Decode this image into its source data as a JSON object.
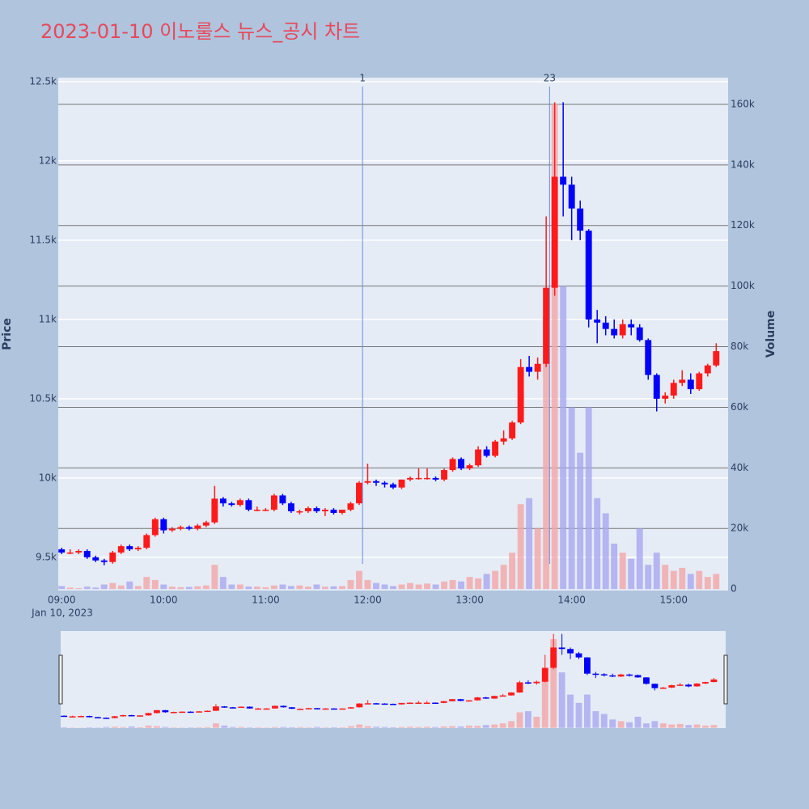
{
  "chart_data": {
    "type": "candlestick",
    "title": "2023-01-10 이노룰스 뉴스_공시 차트",
    "ylabel": "Price",
    "y2label": "Volume",
    "x_sublabel": "Jan 10, 2023",
    "increasing_color": "#ff1a1a",
    "decreasing_color": "#0000ff",
    "volume_increasing_color": "#f4a6a6",
    "volume_decreasing_color": "#a8a8f0",
    "grid": true,
    "rangeslider": true,
    "xlim": [
      "08:58",
      "15:32"
    ],
    "xticks": [
      "09:00",
      "10:00",
      "11:00",
      "12:00",
      "13:00",
      "14:00",
      "15:00"
    ],
    "ylim": [
      9290,
      12525
    ],
    "yticks": [
      {
        "value": 9500,
        "label": "9.5k"
      },
      {
        "value": 10000,
        "label": "10k"
      },
      {
        "value": 10500,
        "label": "10.5k"
      },
      {
        "value": 11000,
        "label": "11k"
      },
      {
        "value": 11500,
        "label": "11.5k"
      },
      {
        "value": 12000,
        "label": "12k"
      },
      {
        "value": 12500,
        "label": "12.5k"
      }
    ],
    "y2lim": [
      -500,
      168800
    ],
    "y2ticks": [
      0,
      {
        "value": 20000,
        "label": "20k"
      },
      {
        "value": 40000,
        "label": "40k"
      },
      {
        "value": 60000,
        "label": "60k"
      },
      {
        "value": 80000,
        "label": "80k"
      },
      {
        "value": 100000,
        "label": "100k"
      },
      {
        "value": 120000,
        "label": "120k"
      },
      {
        "value": 140000,
        "label": "140k"
      },
      {
        "value": 160000,
        "label": "160k"
      }
    ],
    "annotations": [
      {
        "x": "11:57",
        "label": "1"
      },
      {
        "x": "13:47",
        "label": "23"
      }
    ],
    "x": [
      "09:00",
      "09:05",
      "09:10",
      "09:15",
      "09:20",
      "09:25",
      "09:30",
      "09:35",
      "09:40",
      "09:45",
      "09:50",
      "09:55",
      "10:00",
      "10:05",
      "10:10",
      "10:15",
      "10:20",
      "10:25",
      "10:30",
      "10:35",
      "10:40",
      "10:45",
      "10:50",
      "10:55",
      "11:00",
      "11:05",
      "11:10",
      "11:15",
      "11:20",
      "11:25",
      "11:30",
      "11:35",
      "11:40",
      "11:45",
      "11:50",
      "11:55",
      "12:00",
      "12:05",
      "12:10",
      "12:15",
      "12:20",
      "12:25",
      "12:30",
      "12:35",
      "12:40",
      "12:45",
      "12:50",
      "12:55",
      "13:00",
      "13:05",
      "13:10",
      "13:15",
      "13:20",
      "13:25",
      "13:30",
      "13:35",
      "13:40",
      "13:45",
      "13:50",
      "13:55",
      "14:00",
      "14:05",
      "14:10",
      "14:15",
      "14:20",
      "14:25",
      "14:30",
      "14:35",
      "14:40",
      "14:45",
      "14:50",
      "14:55",
      "15:00",
      "15:05",
      "15:10",
      "15:15",
      "15:20",
      "15:25"
    ],
    "open": [
      9550,
      9530,
      9530,
      9540,
      9500,
      9480,
      9470,
      9530,
      9570,
      9550,
      9560,
      9640,
      9740,
      9670,
      9680,
      9690,
      9680,
      9700,
      9720,
      9870,
      9840,
      9830,
      9860,
      9800,
      9800,
      9800,
      9890,
      9840,
      9790,
      9790,
      9810,
      9790,
      9800,
      9780,
      9800,
      9840,
      9970,
      9980,
      9970,
      9960,
      9940,
      9990,
      10000,
      10000,
      10000,
      9990,
      10050,
      10120,
      10060,
      10080,
      10180,
      10140,
      10230,
      10250,
      10350,
      10700,
      10670,
      10720,
      11200,
      11900,
      11850,
      11700,
      11560,
      11000,
      10980,
      10940,
      10900,
      10970,
      10950,
      10870,
      10650,
      10500,
      10520,
      10600,
      10620,
      10560,
      10660,
      10710
    ],
    "high": [
      9560,
      9550,
      9550,
      9550,
      9510,
      9490,
      9540,
      9580,
      9580,
      9570,
      9650,
      9750,
      9750,
      9690,
      9700,
      9700,
      9710,
      9730,
      9950,
      9880,
      9850,
      9870,
      9870,
      9820,
      9810,
      9900,
      9900,
      9850,
      9800,
      9820,
      9820,
      9810,
      9810,
      9800,
      9850,
      9980,
      10090,
      9990,
      9980,
      9970,
      9990,
      10010,
      10060,
      10060,
      10010,
      10060,
      10130,
      10130,
      10090,
      10200,
      10200,
      10240,
      10300,
      10360,
      10750,
      10770,
      10760,
      11650,
      12370,
      12370,
      11900,
      11750,
      11570,
      11060,
      11020,
      11000,
      11000,
      11000,
      10970,
      10880,
      10660,
      10540,
      10620,
      10680,
      10660,
      10670,
      10720,
      10850
    ],
    "low": [
      9520,
      9520,
      9520,
      9490,
      9470,
      9450,
      9460,
      9520,
      9540,
      9540,
      9550,
      9630,
      9650,
      9660,
      9670,
      9670,
      9670,
      9690,
      9710,
      9820,
      9820,
      9820,
      9790,
      9790,
      9790,
      9790,
      9830,
      9780,
      9770,
      9780,
      9780,
      9760,
      9770,
      9770,
      9790,
      9830,
      9960,
      9950,
      9940,
      9930,
      9930,
      9980,
      9990,
      9990,
      9980,
      9980,
      10040,
      10050,
      10050,
      10070,
      10130,
      10130,
      10210,
      10240,
      10340,
      10640,
      10620,
      10700,
      11150,
      11650,
      11500,
      11500,
      10950,
      10850,
      10900,
      10880,
      10880,
      10900,
      10860,
      10620,
      10420,
      10470,
      10500,
      10580,
      10530,
      10550,
      10640,
      10700
    ],
    "close": [
      9530,
      9530,
      9540,
      9500,
      9480,
      9470,
      9530,
      9570,
      9550,
      9560,
      9640,
      9740,
      9670,
      9680,
      9690,
      9680,
      9700,
      9720,
      9870,
      9840,
      9830,
      9860,
      9800,
      9800,
      9800,
      9890,
      9840,
      9790,
      9790,
      9810,
      9790,
      9800,
      9780,
      9800,
      9840,
      9970,
      9980,
      9970,
      9960,
      9940,
      9990,
      10000,
      10000,
      10000,
      9990,
      10050,
      10120,
      10060,
      10080,
      10180,
      10140,
      10230,
      10250,
      10350,
      10700,
      10670,
      10720,
      11200,
      11900,
      11850,
      11700,
      11560,
      11000,
      10980,
      10940,
      10900,
      10970,
      10950,
      10870,
      10650,
      10500,
      10520,
      10600,
      10620,
      10560,
      10660,
      10710,
      10800
    ],
    "volume": [
      1000,
      500,
      300,
      800,
      500,
      1500,
      2000,
      1200,
      2500,
      1000,
      4000,
      3000,
      1500,
      800,
      600,
      700,
      900,
      1200,
      8000,
      4000,
      1500,
      1500,
      800,
      800,
      600,
      1200,
      1500,
      1000,
      1200,
      800,
      1500,
      800,
      900,
      1000,
      3000,
      6000,
      3000,
      2000,
      1500,
      1000,
      1500,
      2000,
      1500,
      1800,
      1500,
      2500,
      3000,
      2500,
      4000,
      3500,
      5000,
      6000,
      8000,
      12000,
      28000,
      30000,
      20000,
      90000,
      160000,
      100000,
      60000,
      45000,
      60000,
      30000,
      25000,
      15000,
      12000,
      10000,
      20000,
      8000,
      12000,
      8000,
      6000,
      7000,
      5000,
      6000,
      4000,
      5000
    ]
  }
}
